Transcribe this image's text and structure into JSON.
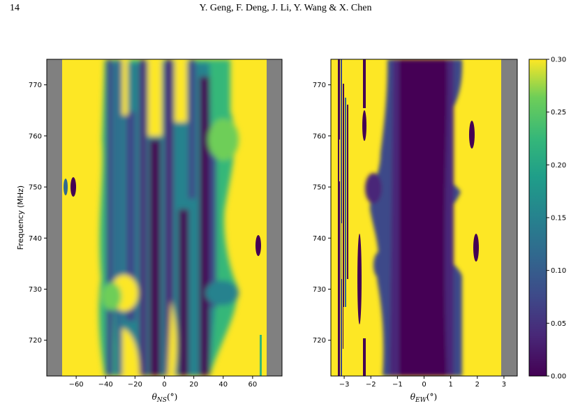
{
  "page": {
    "number": "14",
    "running_head": "Y. Geng, F. Deng, J. Li, Y. Wang & X. Chen"
  },
  "chart_data": [
    {
      "type": "heatmap",
      "panel": "left",
      "ylabel": "Frequency (MHz)",
      "xlabel_symbol": "θ",
      "xlabel_sub": "NS",
      "xlabel_unit": "(°)",
      "xlim": [
        -80,
        80
      ],
      "ylim": [
        713,
        775
      ],
      "x_ticks": [
        -60,
        -40,
        -20,
        0,
        20,
        40,
        60
      ],
      "y_ticks": [
        720,
        730,
        740,
        750,
        760,
        770
      ],
      "masked_below_x": -70,
      "masked_above_x": 69
    },
    {
      "type": "heatmap",
      "panel": "right",
      "xlabel_symbol": "θ",
      "xlabel_sub": "EW",
      "xlabel_unit": "(°)",
      "xlim": [
        -3.5,
        3.5
      ],
      "ylim": [
        713,
        775
      ],
      "x_ticks": [
        -3,
        -2,
        -1,
        0,
        1,
        2,
        3
      ],
      "y_ticks": [
        720,
        730,
        740,
        750,
        760,
        770
      ],
      "masked_above_x": 2.85
    }
  ],
  "colorbar": {
    "colormap": "viridis",
    "range": [
      0.0,
      0.3
    ],
    "ticks": [
      "0.30",
      "0.25",
      "0.20",
      "0.15",
      "0.10",
      "0.05",
      "0.00"
    ]
  }
}
